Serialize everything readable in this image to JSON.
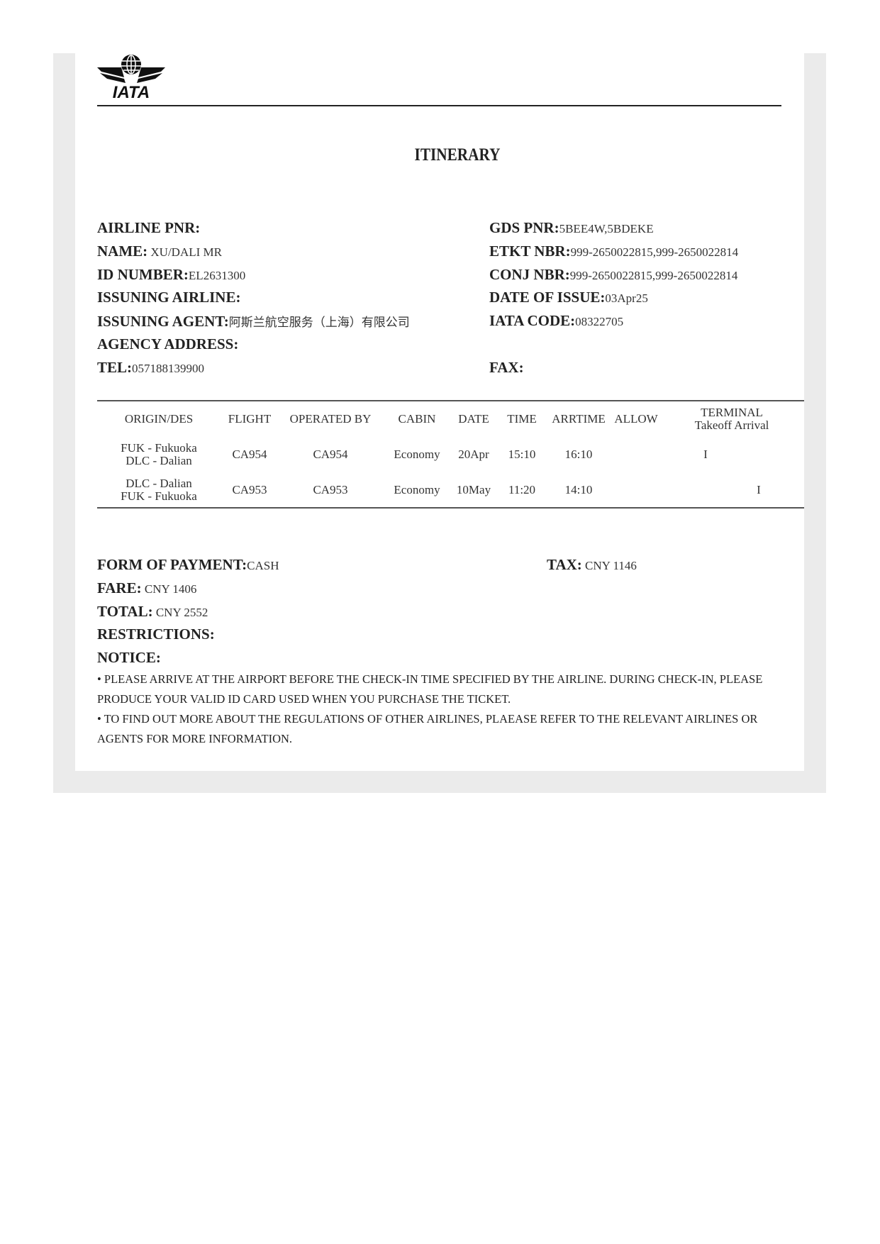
{
  "logo": {
    "text": "IATA",
    "icon": "iata-globe-wings-logo"
  },
  "title": "ITINERARY",
  "left_fields": [
    {
      "label": "AIRLINE PNR:",
      "value": ""
    },
    {
      "label": "NAME:",
      "value": " XU/DALI MR"
    },
    {
      "label": "ID NUMBER:",
      "value": "EL2631300"
    },
    {
      "label": "ISSUNING AIRLINE:",
      "value": ""
    },
    {
      "label": "ISSUNING AGENT:",
      "value": "阿斯兰航空服务（上海）有限公司"
    },
    {
      "label": "AGENCY ADDRESS:",
      "value": ""
    },
    {
      "label": "TEL:",
      "value": "057188139900"
    }
  ],
  "right_fields": [
    {
      "label": "GDS PNR:",
      "value": "5BEE4W,5BDEKE"
    },
    {
      "label": "ETKT NBR:",
      "value": "999-2650022815,999-2650022814"
    },
    {
      "label": "CONJ NBR:",
      "value": "999-2650022815,999-2650022814"
    },
    {
      "label": "DATE OF ISSUE:",
      "value": "03Apr25"
    },
    {
      "label": "IATA CODE:",
      "value": "08322705"
    },
    {
      "label": "FAX:",
      "value": ""
    }
  ],
  "table": {
    "headers": [
      "ORIGIN/DES",
      "FLIGHT",
      "OPERATED BY",
      "CABIN",
      "DATE",
      "TIME",
      "ARRTIME",
      "ALLOW",
      "TERMINAL",
      "Takeoff Arrival"
    ],
    "rows": [
      {
        "origin": "FUK - Fukuoka",
        "dest": "DLC - Dalian",
        "flight": "CA954",
        "operated": "CA954",
        "cabin": "Economy",
        "date": "20Apr",
        "time": "15:10",
        "arrtime": "16:10",
        "allow": "",
        "takeoff": "I",
        "arrival": ""
      },
      {
        "origin": "DLC - Dalian",
        "dest": "FUK - Fukuoka",
        "flight": "CA953",
        "operated": "CA953",
        "cabin": "Economy",
        "date": "10May",
        "time": "11:20",
        "arrtime": "14:10",
        "allow": "",
        "takeoff": "",
        "arrival": "I"
      }
    ]
  },
  "payment": {
    "form_label": "FORM OF PAYMENT:",
    "form_value": "CASH",
    "tax_label": "TAX:",
    "tax_value": " CNY 1146",
    "fare_label": "FARE:",
    "fare_value": " CNY 1406",
    "total_label": "TOTAL:",
    "total_value": " CNY 2552",
    "restrictions_label": "RESTRICTIONS:",
    "notice_label": "NOTICE:"
  },
  "notices": [
    "• PLEASE ARRIVE AT THE AIRPORT BEFORE THE CHECK-IN TIME SPECIFIED BY THE AIRLINE. DURING CHECK-IN, PLEASE PRODUCE YOUR VALID ID CARD USED WHEN YOU PURCHASE THE TICKET.",
    "• TO FIND OUT MORE ABOUT THE REGULATIONS OF OTHER AIRLINES, PLAEASE REFER TO THE RELEVANT AIRLINES OR AGENTS FOR MORE INFORMATION."
  ]
}
